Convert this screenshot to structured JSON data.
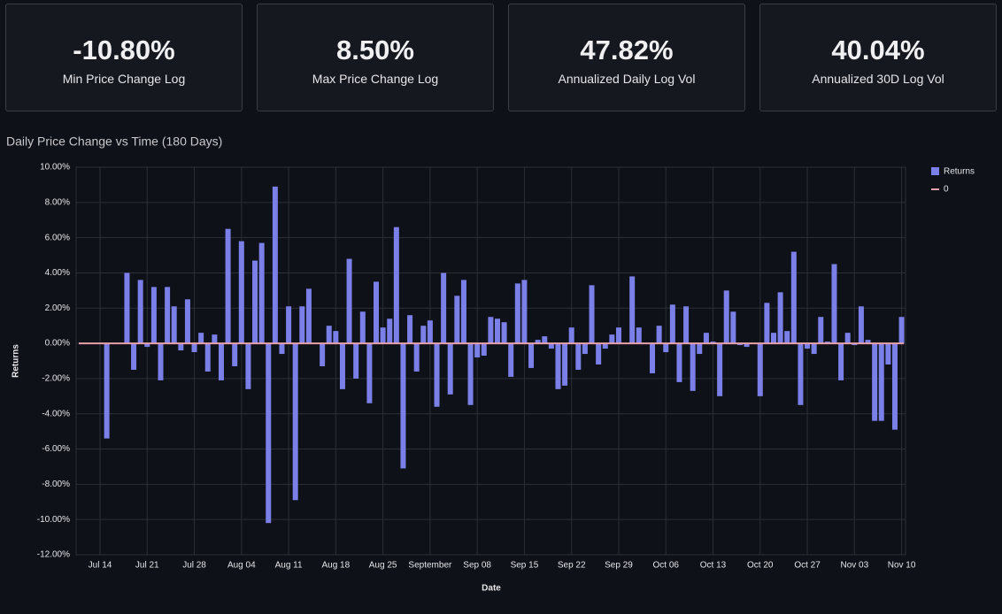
{
  "cards": [
    {
      "value": "-10.80%",
      "label": "Min Price Change Log"
    },
    {
      "value": "8.50%",
      "label": "Max Price Change Log"
    },
    {
      "value": "47.82%",
      "label": "Annualized Daily Log Vol"
    },
    {
      "value": "40.04%",
      "label": "Annualized 30D Log Vol"
    }
  ],
  "chart_data": {
    "type": "bar",
    "title": "Daily Price Change vs Time (180 Days)",
    "x_label": "Date",
    "y_label": "Returns",
    "categories": [
      "Jul 14",
      null,
      null,
      null,
      null,
      null,
      null,
      "Jul 21",
      null,
      null,
      null,
      null,
      null,
      null,
      "Jul 28",
      null,
      null,
      null,
      null,
      null,
      null,
      "Aug 04",
      null,
      null,
      null,
      null,
      null,
      null,
      "Aug 11",
      null,
      null,
      null,
      null,
      null,
      null,
      "Aug 18",
      null,
      null,
      null,
      null,
      null,
      null,
      "Aug 25",
      null,
      null,
      null,
      null,
      null,
      null,
      "September",
      null,
      null,
      null,
      null,
      null,
      null,
      "Sep 08",
      null,
      null,
      null,
      null,
      null,
      null,
      "Sep 15",
      null,
      null,
      null,
      null,
      null,
      null,
      "Sep 22",
      null,
      null,
      null,
      null,
      null,
      null,
      "Sep 29",
      null,
      null,
      null,
      null,
      null,
      null,
      "Oct 06",
      null,
      null,
      null,
      null,
      null,
      null,
      "Oct 13",
      null,
      null,
      null,
      null,
      null,
      null,
      "Oct 20",
      null,
      null,
      null,
      null,
      null,
      null,
      "Oct 27",
      null,
      null,
      null,
      null,
      null,
      null,
      "Nov 03",
      null,
      null,
      null,
      null,
      null,
      null,
      "Nov 10"
    ],
    "series": [
      {
        "name": "Returns",
        "color": "#7b7fe8",
        "values": [
          null,
          -5.4,
          null,
          null,
          4.0,
          -1.5,
          3.6,
          -0.2,
          3.2,
          -2.1,
          3.2,
          2.1,
          -0.4,
          2.5,
          -0.5,
          0.6,
          -1.6,
          0.5,
          -2.1,
          6.5,
          -1.3,
          5.8,
          -2.6,
          4.7,
          5.7,
          -10.2,
          8.9,
          -0.6,
          2.1,
          -8.9,
          2.1,
          3.1,
          0,
          -1.3,
          1.0,
          0.7,
          -2.6,
          4.8,
          -2.0,
          1.8,
          -3.4,
          3.5,
          0.9,
          1.4,
          6.6,
          -7.1,
          1.6,
          -1.6,
          1.0,
          1.3,
          -3.6,
          4.0,
          -2.9,
          2.7,
          3.6,
          -3.5,
          -0.8,
          -0.7,
          1.5,
          1.4,
          1.2,
          -1.9,
          3.4,
          3.6,
          -1.4,
          0.2,
          0.4,
          -0.3,
          -2.6,
          -2.4,
          0.9,
          -1.5,
          -0.6,
          3.3,
          -1.2,
          -0.3,
          0.5,
          0.9,
          0,
          3.8,
          0.9,
          0,
          -1.7,
          1.0,
          -0.5,
          2.2,
          -2.2,
          2.1,
          -2.7,
          -0.6,
          0.6,
          0.1,
          -3.0,
          3.0,
          1.8,
          -0.1,
          -0.2,
          0,
          -3.0,
          2.3,
          0.6,
          2.9,
          0.7,
          5.2,
          -3.5,
          -0.3,
          -0.6,
          1.5,
          0.1,
          4.5,
          -2.1,
          0.6,
          -0.1,
          2.1,
          0.2,
          -4.4,
          -4.4,
          -1.2,
          -4.9,
          1.5
        ]
      }
    ],
    "reference_line": {
      "name": "0",
      "value": 0,
      "color": "#e8a0aa"
    },
    "ylim": [
      -12,
      10
    ],
    "yticks": [
      {
        "value": -12,
        "label": "-12.00%"
      },
      {
        "value": -10,
        "label": "-10.00%"
      },
      {
        "value": -8,
        "label": "-8.00%"
      },
      {
        "value": -6,
        "label": "-6.00%"
      },
      {
        "value": -4,
        "label": "-4.00%"
      },
      {
        "value": -2,
        "label": "-2.00%"
      },
      {
        "value": 0,
        "label": "0.00%"
      },
      {
        "value": 2,
        "label": "2.00%"
      },
      {
        "value": 4,
        "label": "4.00%"
      },
      {
        "value": 6,
        "label": "6.00%"
      },
      {
        "value": 8,
        "label": "8.00%"
      },
      {
        "value": 10,
        "label": "10.00%"
      }
    ],
    "grid": true,
    "legend": "right"
  }
}
